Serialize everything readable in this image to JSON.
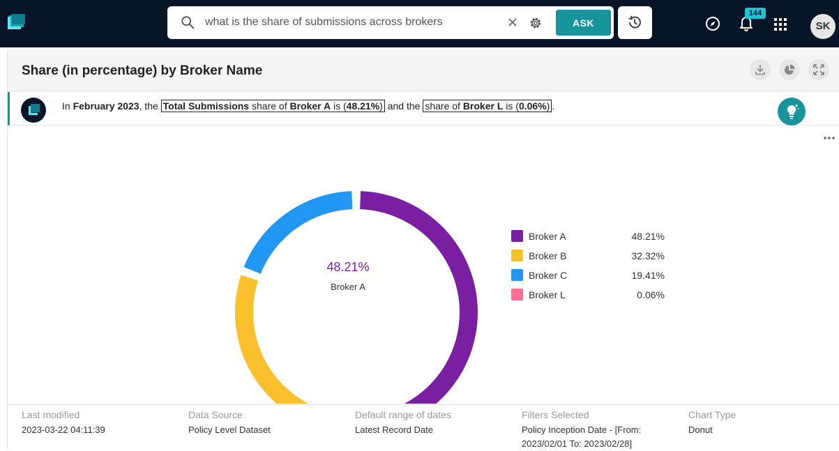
{
  "search": {
    "query": "what is the share of submissions across brokers",
    "ask_label": "ASK"
  },
  "nav": {
    "notification_count": "144",
    "avatar_initials": "SK"
  },
  "card": {
    "title": "Share (in percentage) by Broker Name"
  },
  "insight": {
    "p1": "In ",
    "period": "February 2023",
    "p2": ", the ",
    "metric": "Total Submissions",
    "p3": " share of ",
    "top_broker": "Broker A",
    "p4": " is (",
    "top_value": "48.21%",
    "p5": ")",
    "p6": " and the ",
    "p7": "share of ",
    "low_broker": "Broker L",
    "p8": " is (",
    "low_value": "0.06%",
    "p9": ")",
    "p10": "."
  },
  "chart_data": {
    "type": "pie",
    "variant": "donut",
    "categories": [
      "Broker A",
      "Broker B",
      "Broker C",
      "Broker L"
    ],
    "values": [
      48.21,
      32.32,
      19.41,
      0.06
    ],
    "labels": [
      "48.21%",
      "32.32%",
      "19.41%",
      "0.06%"
    ],
    "colors": [
      "#7b1fa2",
      "#fbc02d",
      "#2196f3",
      "#ff6f91"
    ],
    "center_value": "48.21%",
    "center_label": "Broker A",
    "legend_position": "right"
  },
  "footer": {
    "last_modified_label": "Last modified",
    "last_modified": "2023-03-22 04:11:39",
    "data_source_label": "Data Source",
    "data_source": "Policy Level Dataset",
    "date_range_label": "Default range of dates",
    "date_range": "Latest Record Date",
    "filters_label": "Filters Selected",
    "filters_line1": "Policy Inception Date - [From:",
    "filters_line2": "2023/02/01 To: 2023/02/28]",
    "chart_type_label": "Chart Type",
    "chart_type": "Donut"
  }
}
